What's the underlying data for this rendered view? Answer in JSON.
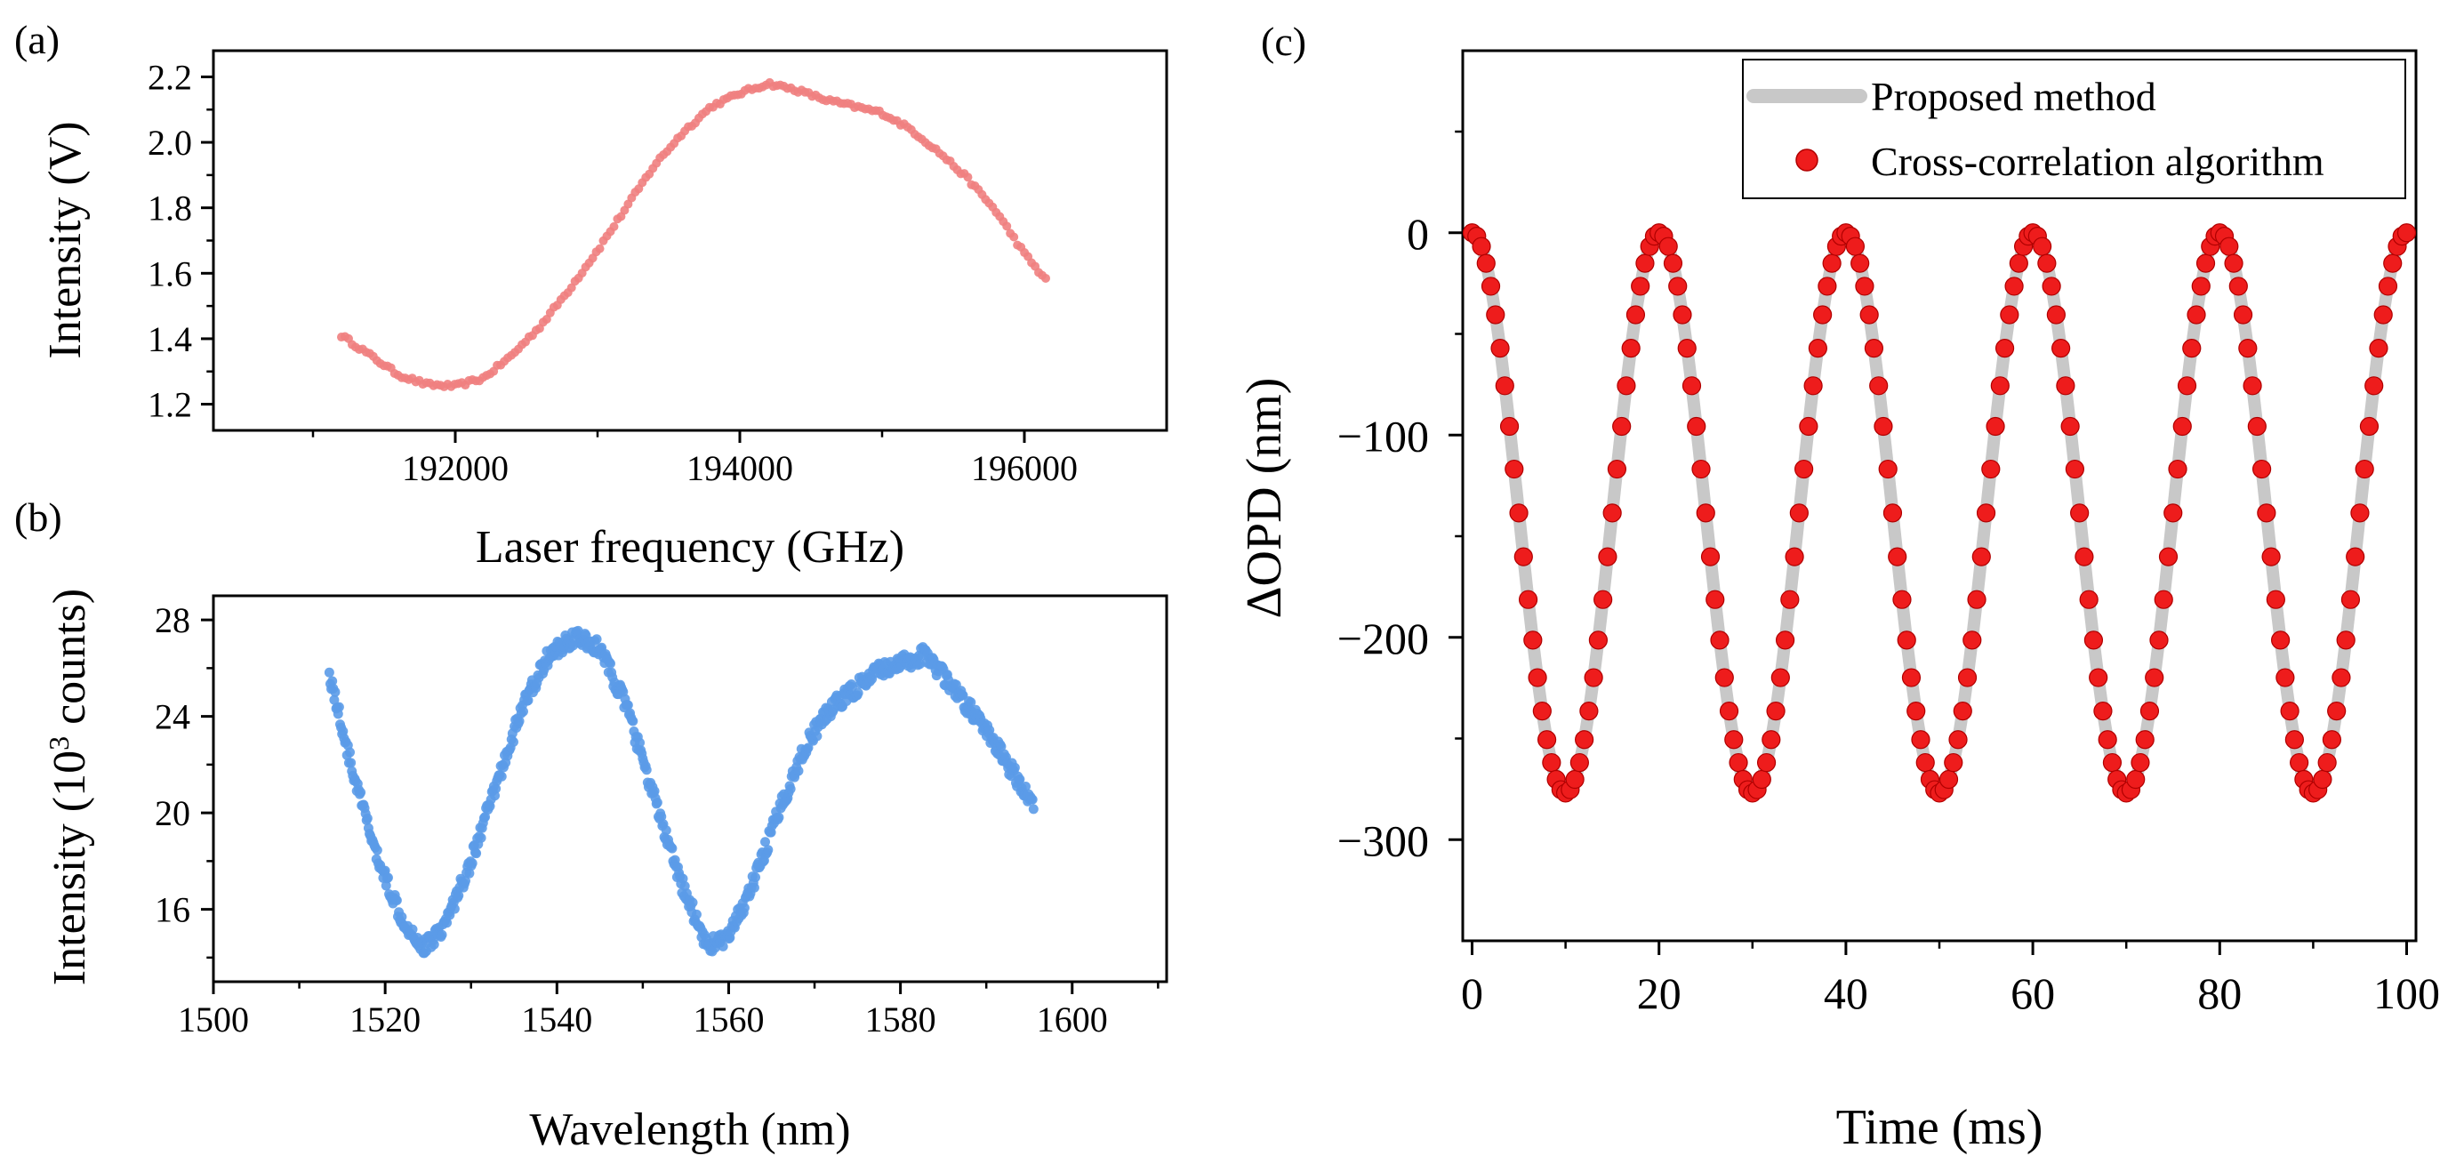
{
  "panels": {
    "a": {
      "label": "(a)"
    },
    "b": {
      "label": "(b)"
    },
    "c": {
      "label": "(c)"
    }
  },
  "chart_data": [
    {
      "id": "a",
      "type": "scatter",
      "title": "",
      "xlabel": "Laser frequency (GHz)",
      "ylabel": "Intensity (V)",
      "xlim": [
        190300,
        197000
      ],
      "ylim": [
        1.12,
        2.28
      ],
      "xticks": [
        192000,
        194000,
        196000
      ],
      "xtick_labels": [
        "192000",
        "194000",
        "196000"
      ],
      "yticks": [
        1.2,
        1.4,
        1.6,
        1.8,
        2.0,
        2.2
      ],
      "ytick_labels": [
        "1.2",
        "1.4",
        "1.6",
        "1.8",
        "2.0",
        "2.2"
      ],
      "color": "#f08080",
      "x_range": [
        191200,
        196150
      ],
      "n_points": 200,
      "profile_knots": {
        "x": [
          191200,
          191400,
          191600,
          191800,
          192000,
          192200,
          192400,
          192600,
          192800,
          193000,
          193200,
          193400,
          193600,
          193800,
          194000,
          194200,
          194400,
          194600,
          194800,
          195000,
          195200,
          195400,
          195600,
          195800,
          196000,
          196150
        ],
        "y": [
          1.41,
          1.35,
          1.29,
          1.26,
          1.255,
          1.28,
          1.35,
          1.44,
          1.55,
          1.67,
          1.8,
          1.93,
          2.03,
          2.11,
          2.15,
          2.18,
          2.16,
          2.13,
          2.11,
          2.09,
          2.04,
          1.97,
          1.89,
          1.79,
          1.66,
          1.58
        ]
      }
    },
    {
      "id": "b",
      "type": "scatter",
      "title": "",
      "xlabel": "Wavelength (nm)",
      "ylabel_parts": [
        "Intensity (10",
        "3",
        " counts)"
      ],
      "xlim": [
        1500,
        1611
      ],
      "ylim": [
        13,
        29
      ],
      "xticks": [
        1500,
        1520,
        1540,
        1560,
        1580,
        1600
      ],
      "xtick_labels": [
        "1500",
        "1520",
        "1540",
        "1560",
        "1580",
        "1600"
      ],
      "yticks": [
        16,
        20,
        24,
        28
      ],
      "ytick_labels": [
        "16",
        "20",
        "24",
        "28"
      ],
      "color": "#5b9be8",
      "x_range": [
        1513.5,
        1595.5
      ],
      "n_points": 720,
      "profile_knots": {
        "x": [
          1513.5,
          1516,
          1519,
          1522,
          1524.5,
          1527,
          1530,
          1533,
          1536,
          1539,
          1542,
          1545,
          1548,
          1551,
          1554,
          1557.5,
          1560,
          1563,
          1566,
          1569,
          1572,
          1575,
          1578,
          1581,
          1583,
          1586,
          1589,
          1592,
          1595.5
        ],
        "y": [
          25.8,
          22.0,
          18.2,
          15.6,
          14.4,
          15.4,
          18.0,
          21.2,
          24.4,
          26.5,
          27.3,
          26.8,
          24.5,
          21.0,
          17.5,
          14.5,
          14.8,
          17.2,
          20.2,
          22.8,
          24.4,
          25.2,
          26.0,
          26.3,
          26.6,
          25.2,
          23.9,
          22.3,
          20.3
        ]
      }
    },
    {
      "id": "c",
      "type": "line",
      "title": "",
      "xlabel": "Time (ms)",
      "ylabel": "ΔOPD (nm)",
      "xlim": [
        -1,
        101
      ],
      "ylim": [
        -350,
        90
      ],
      "xticks": [
        0,
        20,
        40,
        60,
        80,
        100
      ],
      "xtick_labels": [
        "0",
        "20",
        "40",
        "60",
        "80",
        "100"
      ],
      "yticks": [
        0,
        -100,
        -200,
        -300
      ],
      "ytick_labels": [
        "0",
        "−100",
        "−200",
        "−300"
      ],
      "series": [
        {
          "name": "Proposed method",
          "style": "thick-line",
          "color": "#c8c8c8",
          "function": "y = -138.5 * (1 - cos(2*pi*t/20))",
          "t_range": [
            0,
            100
          ],
          "amplitude_nm": -277,
          "period_ms": 20
        },
        {
          "name": "Cross-correlation algorithm",
          "style": "markers",
          "color": "#ee1c1c",
          "function": "y = -138.5 * (1 - cos(2*pi*t/20))",
          "t_range": [
            0,
            100
          ],
          "t_step_ms": 0.5,
          "amplitude_nm": -277,
          "period_ms": 20
        }
      ],
      "legend": {
        "placement": "top-right",
        "entries": [
          "Proposed method",
          "Cross-correlation algorithm"
        ]
      }
    }
  ]
}
